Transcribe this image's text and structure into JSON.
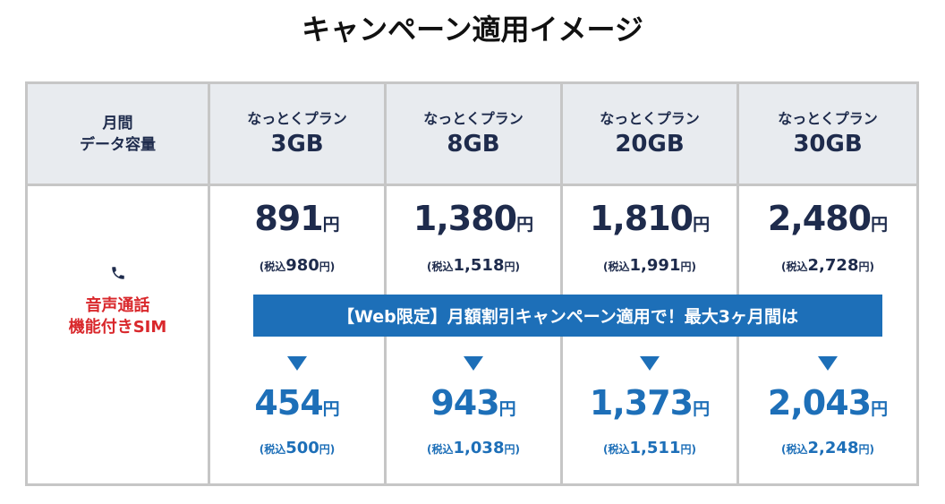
{
  "title": "キャンペーン適用イメージ",
  "header": {
    "label_line1": "月間",
    "label_line2": "データ容量",
    "plans": [
      {
        "name": "なっとくプラン",
        "capacity": "3GB"
      },
      {
        "name": "なっとくプラン",
        "capacity": "8GB"
      },
      {
        "name": "なっとくプラン",
        "capacity": "20GB"
      },
      {
        "name": "なっとくプラン",
        "capacity": "30GB"
      }
    ]
  },
  "row": {
    "label_line1": "音声通話",
    "label_line2": "機能付きSIM",
    "icon": "phone-icon"
  },
  "banner": "【Web限定】月額割引キャンペーン適用で！最大3ヶ月間は",
  "yen": "円",
  "tax_prefix": "(税込",
  "tax_yen": "円)",
  "prices": [
    {
      "regular": "891",
      "regular_tax": "980",
      "discount": "454",
      "discount_tax": "500"
    },
    {
      "regular": "1,380",
      "regular_tax": "1,518",
      "discount": "943",
      "discount_tax": "1,038"
    },
    {
      "regular": "1,810",
      "regular_tax": "1,991",
      "discount": "1,373",
      "discount_tax": "1,511"
    },
    {
      "regular": "2,480",
      "regular_tax": "2,728",
      "discount": "2,043",
      "discount_tax": "2,248"
    }
  ],
  "colors": {
    "navy": "#1e2b4c",
    "blue": "#1d6fb8",
    "red": "#d9282c",
    "header_bg": "#e8ebef"
  }
}
